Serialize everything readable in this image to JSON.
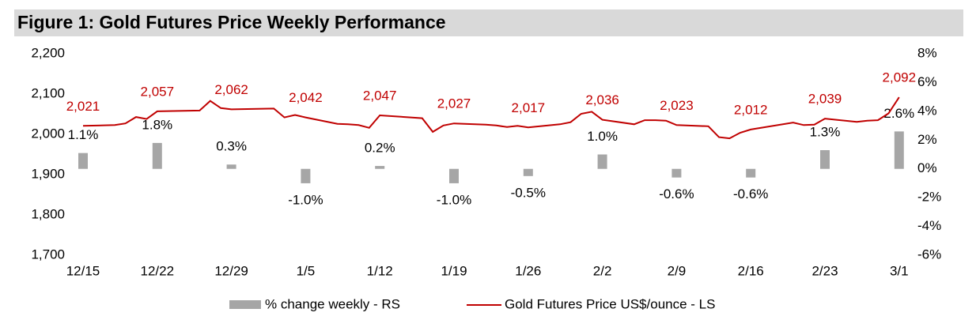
{
  "chart_data": {
    "type": "bar-line",
    "title": "Figure 1: Gold Futures Price Weekly Performance",
    "categories": [
      "12/15",
      "12/22",
      "12/29",
      "1/5",
      "1/12",
      "1/19",
      "1/26",
      "2/2",
      "2/9",
      "2/16",
      "2/23",
      "3/1"
    ],
    "series": [
      {
        "name": "% change weekly - RS",
        "type": "bar",
        "axis": "y2",
        "color": "#a6a6a6",
        "values": [
          1.1,
          1.8,
          0.3,
          -1.0,
          0.2,
          -1.0,
          -0.5,
          1.0,
          -0.6,
          -0.6,
          1.3,
          2.6
        ],
        "value_labels": [
          "1.1%",
          "1.8%",
          "0.3%",
          "-1.0%",
          "0.2%",
          "-1.0%",
          "-0.5%",
          "1.0%",
          "-0.6%",
          "-0.6%",
          "1.3%",
          "2.6%"
        ]
      },
      {
        "name": "Gold Futures Price US$/ounce - LS",
        "type": "line",
        "color": "#c00000",
        "x": [
          "12/15",
          "12/18",
          "12/19",
          "12/20",
          "12/21",
          "12/22",
          "12/26",
          "12/27",
          "12/28",
          "12/29",
          "1/2",
          "1/3",
          "1/4",
          "1/5",
          "1/8",
          "1/9",
          "1/10",
          "1/11",
          "1/12",
          "1/16",
          "1/17",
          "1/18",
          "1/19",
          "1/22",
          "1/23",
          "1/24",
          "1/25",
          "1/26",
          "1/29",
          "1/30",
          "1/31",
          "2/1",
          "2/2",
          "2/5",
          "2/6",
          "2/7",
          "2/8",
          "2/9",
          "2/12",
          "2/13",
          "2/14",
          "2/15",
          "2/16",
          "2/20",
          "2/21",
          "2/22",
          "2/23",
          "2/26",
          "2/27",
          "2/28",
          "2/29",
          "3/1"
        ],
        "values": [
          2021,
          2023,
          2027,
          2043,
          2038,
          2057,
          2059,
          2083,
          2065,
          2062,
          2064,
          2042,
          2048,
          2042,
          2026,
          2025,
          2023,
          2016,
          2047,
          2040,
          2006,
          2022,
          2027,
          2024,
          2022,
          2018,
          2021,
          2017,
          2025,
          2030,
          2051,
          2056,
          2036,
          2025,
          2035,
          2035,
          2034,
          2023,
          2020,
          1993,
          1990,
          2004,
          2012,
          2029,
          2023,
          2024,
          2039,
          2031,
          2034,
          2035,
          2052,
          2092
        ],
        "value_labels": [
          "2,021",
          null,
          null,
          null,
          null,
          "2,057",
          null,
          null,
          null,
          "2,062",
          null,
          null,
          null,
          "2,042",
          null,
          null,
          null,
          null,
          "2,047",
          null,
          null,
          null,
          "2,027",
          null,
          null,
          null,
          null,
          "2,017",
          null,
          null,
          null,
          null,
          "2,036",
          null,
          null,
          null,
          null,
          "2,023",
          null,
          null,
          null,
          null,
          "2,012",
          null,
          null,
          null,
          "2,039",
          null,
          null,
          null,
          null,
          "2,092"
        ]
      }
    ],
    "ylim": [
      1700,
      2200
    ],
    "yticks": [
      {
        "value": 1700,
        "label": "1,700"
      },
      {
        "value": 1800,
        "label": "1,800"
      },
      {
        "value": 1900,
        "label": "1,900"
      },
      {
        "value": 2000,
        "label": "2,000"
      },
      {
        "value": 2100,
        "label": "2,100"
      },
      {
        "value": 2200,
        "label": "2,200"
      }
    ],
    "y2lim": [
      -6,
      8
    ],
    "y2ticks": [
      {
        "value": -6,
        "label": "-6%"
      },
      {
        "value": -4,
        "label": "-4%"
      },
      {
        "value": -2,
        "label": "-2%"
      },
      {
        "value": 0,
        "label": "0%"
      },
      {
        "value": 2,
        "label": "2%"
      },
      {
        "value": 4,
        "label": "4%"
      },
      {
        "value": 6,
        "label": "6%"
      },
      {
        "value": 8,
        "label": "8%"
      }
    ],
    "grid": false,
    "legend": "bottom"
  }
}
